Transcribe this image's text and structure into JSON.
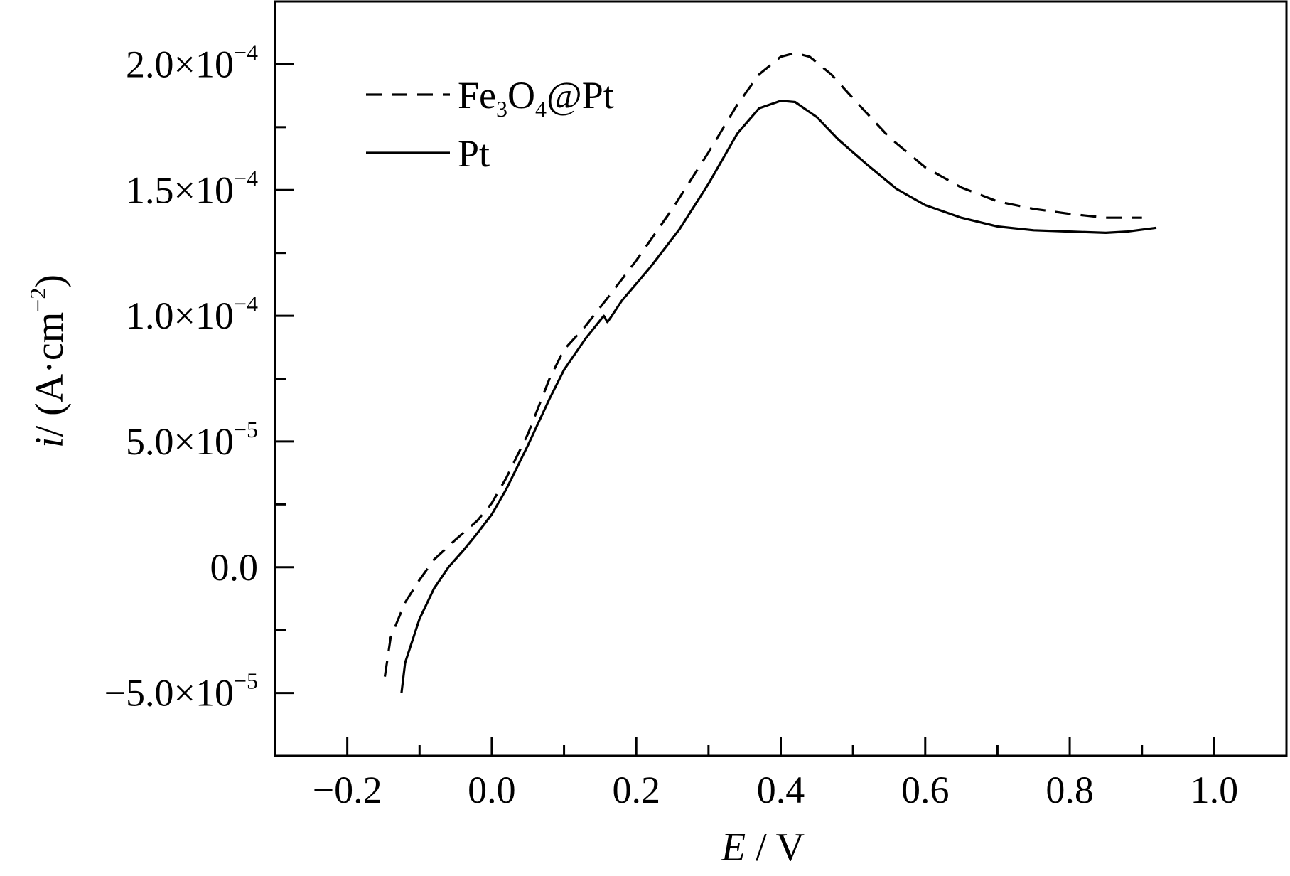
{
  "chart_data": {
    "type": "line",
    "title": "",
    "xlabel": {
      "var": "E",
      "unit": " / V"
    },
    "ylabel": {
      "var": "i",
      "unit": "/ (A·cm",
      "sup": "−2",
      "close": ")"
    },
    "xlim": [
      -0.3,
      1.1
    ],
    "ylim": [
      -7.5e-05,
      0.000225
    ],
    "x_ticks": [
      {
        "value": -0.2,
        "label": "−0.2"
      },
      {
        "value": 0.0,
        "label": "0.0"
      },
      {
        "value": 0.2,
        "label": "0.2"
      },
      {
        "value": 0.4,
        "label": "0.4"
      },
      {
        "value": 0.6,
        "label": "0.6"
      },
      {
        "value": 0.8,
        "label": "0.8"
      },
      {
        "value": 1.0,
        "label": "1.0"
      }
    ],
    "y_ticks": [
      {
        "value": -5e-05,
        "mant": "−5.0×10",
        "exp": "−5"
      },
      {
        "value": 0.0,
        "mant": "0.0",
        "exp": ""
      },
      {
        "value": 5e-05,
        "mant": "5.0×10",
        "exp": "−5"
      },
      {
        "value": 0.0001,
        "mant": "1.0×10",
        "exp": "−4"
      },
      {
        "value": 0.00015,
        "mant": "1.5×10",
        "exp": "−4"
      },
      {
        "value": 0.0002,
        "mant": "2.0×10",
        "exp": "−4"
      }
    ],
    "legend_position": "top-left",
    "series": [
      {
        "name": "Fe3O4@Pt",
        "legend": {
          "parts": [
            "Fe",
            "3",
            "O",
            "4",
            "@Pt"
          ]
        },
        "style": "dashed",
        "color": "#000000",
        "x": [
          -0.148,
          -0.14,
          -0.12,
          -0.1,
          -0.08,
          -0.05,
          -0.02,
          0.0,
          0.02,
          0.05,
          0.08,
          0.1,
          0.13,
          0.16,
          0.2,
          0.25,
          0.3,
          0.34,
          0.37,
          0.4,
          0.42,
          0.44,
          0.47,
          0.5,
          0.55,
          0.6,
          0.65,
          0.7,
          0.75,
          0.8,
          0.85,
          0.9
        ],
        "y": [
          -4.35e-05,
          -2.8e-05,
          -1.4e-05,
          -5e-06,
          3e-06,
          1.1e-05,
          1.85e-05,
          2.55e-05,
          3.55e-05,
          5.3e-05,
          7.5e-05,
          8.65e-05,
          9.6e-05,
          0.000107,
          0.000122,
          0.0001425,
          0.000165,
          0.000184,
          0.000196,
          0.000203,
          0.0002045,
          0.000203,
          0.000196,
          0.0001865,
          0.000171,
          0.000159,
          0.000151,
          0.0001455,
          0.0001425,
          0.0001405,
          0.000139,
          0.000139
        ]
      },
      {
        "name": "Pt",
        "legend": {
          "parts": [
            "Pt"
          ]
        },
        "style": "solid",
        "color": "#000000",
        "x": [
          -0.125,
          -0.12,
          -0.1,
          -0.08,
          -0.06,
          -0.04,
          -0.02,
          0.0,
          0.02,
          0.05,
          0.08,
          0.1,
          0.13,
          0.155,
          0.16,
          0.165,
          0.18,
          0.22,
          0.26,
          0.3,
          0.34,
          0.37,
          0.4,
          0.42,
          0.45,
          0.48,
          0.52,
          0.56,
          0.6,
          0.65,
          0.7,
          0.75,
          0.8,
          0.85,
          0.88,
          0.92
        ],
        "y": [
          -5e-05,
          -3.8e-05,
          -2.05e-05,
          -8.5e-06,
          0.0,
          6.5e-06,
          1.35e-05,
          2.1e-05,
          3.1e-05,
          4.85e-05,
          6.7e-05,
          7.85e-05,
          9.1e-05,
          0.0001,
          9.75e-05,
          9.95e-05,
          0.000106,
          0.0001195,
          0.0001345,
          0.0001525,
          0.0001725,
          0.0001825,
          0.0001855,
          0.000185,
          0.000179,
          0.00017,
          0.00016,
          0.0001505,
          0.000144,
          0.000139,
          0.0001355,
          0.000134,
          0.0001335,
          0.000133,
          0.0001335,
          0.000135
        ]
      }
    ]
  }
}
